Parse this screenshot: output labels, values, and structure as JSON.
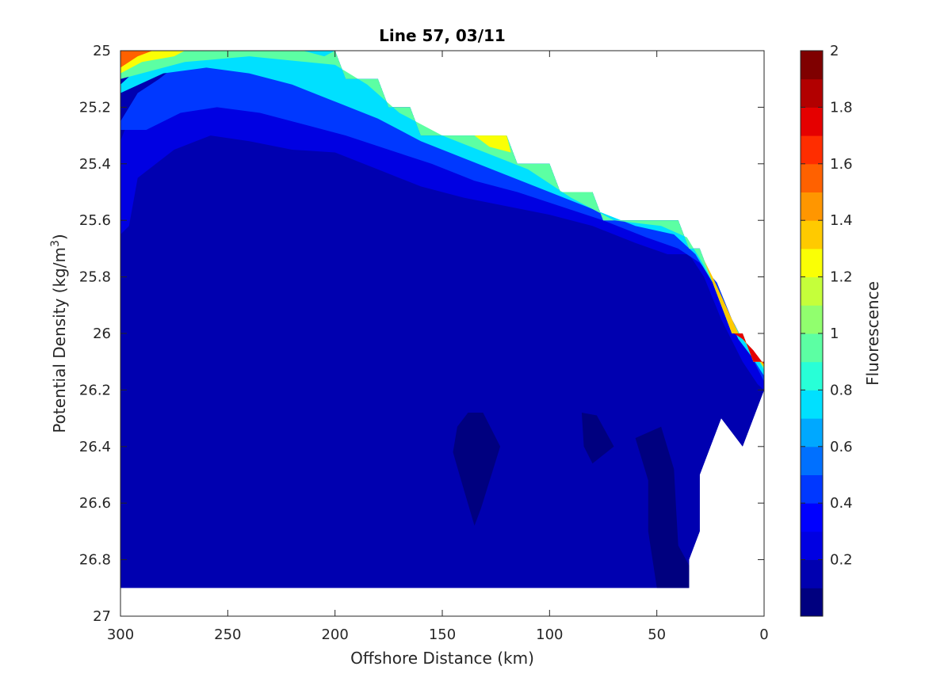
{
  "chart_data": {
    "type": "heatmap",
    "subtype": "filled-contour",
    "title": "Line 57, 03/11",
    "xlabel": "Offshore Distance (km)",
    "ylabel_main": "Potential Density (kg/m",
    "ylabel_sup": "3",
    "ylabel_close": ")",
    "colorbar_label": "Fluorescence",
    "colormap": "jet",
    "xlim": [
      300,
      0
    ],
    "x_reversed": true,
    "ylim": [
      25,
      27
    ],
    "y_reversed": true,
    "x_ticks": [
      300,
      250,
      200,
      150,
      100,
      50,
      0
    ],
    "x_tick_labels": [
      "300",
      "250",
      "200",
      "150",
      "100",
      "50",
      "0"
    ],
    "y_ticks": [
      25,
      25.2,
      25.4,
      25.6,
      25.8,
      26,
      26.2,
      26.4,
      26.6,
      26.8,
      27
    ],
    "y_tick_labels": [
      "25",
      "25.2",
      "25.4",
      "25.6",
      "25.8",
      "26",
      "26.2",
      "26.4",
      "26.6",
      "26.8",
      "27"
    ],
    "clim": [
      0,
      2
    ],
    "colorbar_ticks": [
      0.2,
      0.4,
      0.6,
      0.8,
      1,
      1.2,
      1.4,
      1.6,
      1.8,
      2
    ],
    "colorbar_tick_labels": [
      "0.2",
      "0.4",
      "0.6",
      "0.8",
      "1",
      "1.2",
      "1.4",
      "1.6",
      "1.8",
      "2"
    ],
    "levels": [
      0,
      0.1,
      0.2,
      0.3,
      0.4,
      0.5,
      0.6,
      0.7,
      0.8,
      0.9,
      1.0,
      1.1,
      1.2,
      1.3,
      1.4,
      1.5,
      1.6,
      1.7,
      1.8,
      1.9,
      2.0
    ],
    "level_colors": [
      "#00007F",
      "#0000B0",
      "#0000E2",
      "#0000FF",
      "#0038FF",
      "#0070FF",
      "#00A8FF",
      "#00E0FF",
      "#28FFD7",
      "#5CFFA3",
      "#91FF6E",
      "#C5FF3A",
      "#FAFF05",
      "#FFCA00",
      "#FF9600",
      "#FF6100",
      "#FF2D00",
      "#E50000",
      "#B20000",
      "#7F0000"
    ],
    "surface_top": [
      [
        300,
        25.0
      ],
      [
        270,
        25.0
      ],
      [
        200,
        25.0
      ],
      [
        195,
        25.1
      ],
      [
        180,
        25.1
      ],
      [
        175,
        25.2
      ],
      [
        165,
        25.2
      ],
      [
        160,
        25.3
      ],
      [
        120,
        25.3
      ],
      [
        115,
        25.4
      ],
      [
        100,
        25.4
      ],
      [
        95,
        25.5
      ],
      [
        80,
        25.5
      ],
      [
        75,
        25.6
      ],
      [
        40,
        25.6
      ],
      [
        35,
        25.7
      ],
      [
        30,
        25.7
      ],
      [
        15,
        26.0
      ],
      [
        10,
        26.0
      ],
      [
        5,
        26.1
      ],
      [
        0,
        26.1
      ],
      [
        0,
        26.2
      ],
      [
        10,
        26.4
      ],
      [
        20,
        26.3
      ],
      [
        30,
        26.5
      ],
      [
        30,
        26.7
      ],
      [
        35,
        26.8
      ],
      [
        35,
        26.9
      ],
      [
        300,
        26.9
      ]
    ],
    "contour_fills": [
      {
        "level": 0.15,
        "polygon": [
          [
            300,
            25.65
          ],
          [
            296,
            25.62
          ],
          [
            292,
            25.45
          ],
          [
            275,
            25.35
          ],
          [
            258,
            25.3
          ],
          [
            240,
            25.32
          ],
          [
            220,
            25.35
          ],
          [
            200,
            25.36
          ],
          [
            180,
            25.42
          ],
          [
            160,
            25.48
          ],
          [
            140,
            25.52
          ],
          [
            120,
            25.55
          ],
          [
            100,
            25.58
          ],
          [
            80,
            25.62
          ],
          [
            60,
            25.68
          ],
          [
            45,
            25.72
          ],
          [
            35,
            25.72
          ],
          [
            28,
            25.8
          ],
          [
            20,
            25.95
          ],
          [
            10,
            26.1
          ],
          [
            3,
            26.18
          ],
          [
            0,
            26.2
          ],
          [
            10,
            26.4
          ],
          [
            20,
            26.3
          ],
          [
            30,
            26.5
          ],
          [
            30,
            26.7
          ],
          [
            35,
            26.8
          ],
          [
            35,
            26.9
          ],
          [
            300,
            26.9
          ],
          [
            300,
            26.82
          ]
        ]
      },
      {
        "level": 0.25,
        "polygon": [
          [
            300,
            25.32
          ],
          [
            294,
            25.2
          ],
          [
            285,
            25.15
          ],
          [
            275,
            25.08
          ],
          [
            265,
            25.02
          ],
          [
            255,
            25.0
          ],
          [
            200,
            25.0
          ],
          [
            195,
            25.1
          ],
          [
            180,
            25.1
          ],
          [
            175,
            25.2
          ],
          [
            165,
            25.2
          ],
          [
            160,
            25.3
          ],
          [
            120,
            25.3
          ],
          [
            115,
            25.4
          ],
          [
            100,
            25.4
          ],
          [
            95,
            25.5
          ],
          [
            80,
            25.5
          ],
          [
            75,
            25.6
          ],
          [
            40,
            25.6
          ],
          [
            35,
            25.7
          ],
          [
            30,
            25.7
          ],
          [
            15,
            26.0
          ],
          [
            10,
            26.0
          ],
          [
            5,
            26.1
          ],
          [
            0,
            26.1
          ],
          [
            0,
            26.2
          ],
          [
            3,
            26.18
          ],
          [
            10,
            26.1
          ],
          [
            20,
            25.95
          ],
          [
            28,
            25.8
          ],
          [
            35,
            25.72
          ],
          [
            45,
            25.72
          ],
          [
            60,
            25.68
          ],
          [
            80,
            25.62
          ],
          [
            100,
            25.58
          ],
          [
            120,
            25.55
          ],
          [
            140,
            25.52
          ],
          [
            160,
            25.48
          ],
          [
            180,
            25.42
          ],
          [
            200,
            25.36
          ],
          [
            220,
            25.35
          ],
          [
            240,
            25.32
          ],
          [
            258,
            25.3
          ],
          [
            275,
            25.35
          ],
          [
            292,
            25.45
          ],
          [
            296,
            25.62
          ],
          [
            300,
            25.65
          ]
        ]
      },
      {
        "level": 0.45,
        "polygon": [
          [
            300,
            25.25
          ],
          [
            292,
            25.15
          ],
          [
            282,
            25.1
          ],
          [
            272,
            25.04
          ],
          [
            262,
            25.0
          ],
          [
            200,
            25.0
          ],
          [
            195,
            25.1
          ],
          [
            180,
            25.1
          ],
          [
            175,
            25.2
          ],
          [
            165,
            25.2
          ],
          [
            160,
            25.3
          ],
          [
            120,
            25.3
          ],
          [
            115,
            25.4
          ],
          [
            100,
            25.4
          ],
          [
            95,
            25.5
          ],
          [
            80,
            25.5
          ],
          [
            75,
            25.6
          ],
          [
            40,
            25.6
          ],
          [
            35,
            25.7
          ],
          [
            30,
            25.7
          ],
          [
            15,
            26.0
          ],
          [
            10,
            26.0
          ],
          [
            5,
            26.1
          ],
          [
            0,
            26.1
          ],
          [
            0,
            26.17
          ],
          [
            8,
            26.05
          ],
          [
            15,
            25.95
          ],
          [
            22,
            25.82
          ],
          [
            30,
            25.75
          ],
          [
            40,
            25.7
          ],
          [
            55,
            25.66
          ],
          [
            75,
            25.6
          ],
          [
            95,
            25.55
          ],
          [
            115,
            25.5
          ],
          [
            135,
            25.46
          ],
          [
            155,
            25.4
          ],
          [
            175,
            25.35
          ],
          [
            195,
            25.3
          ],
          [
            215,
            25.26
          ],
          [
            235,
            25.22
          ],
          [
            255,
            25.2
          ],
          [
            272,
            25.22
          ],
          [
            288,
            25.28
          ],
          [
            300,
            25.28
          ]
        ]
      },
      {
        "level": 0.75,
        "polygon": [
          [
            300,
            25.12
          ],
          [
            290,
            25.05
          ],
          [
            280,
            25.02
          ],
          [
            270,
            25.0
          ],
          [
            200,
            25.0
          ],
          [
            195,
            25.1
          ],
          [
            180,
            25.1
          ],
          [
            175,
            25.2
          ],
          [
            165,
            25.2
          ],
          [
            160,
            25.3
          ],
          [
            120,
            25.3
          ],
          [
            115,
            25.4
          ],
          [
            100,
            25.4
          ],
          [
            95,
            25.5
          ],
          [
            80,
            25.5
          ],
          [
            75,
            25.6
          ],
          [
            40,
            25.6
          ],
          [
            35,
            25.7
          ],
          [
            30,
            25.7
          ],
          [
            15,
            26.0
          ],
          [
            10,
            26.0
          ],
          [
            5,
            26.1
          ],
          [
            0,
            26.1
          ],
          [
            0,
            26.15
          ],
          [
            6,
            26.08
          ],
          [
            12,
            26.02
          ],
          [
            18,
            25.92
          ],
          [
            24,
            25.82
          ],
          [
            32,
            25.72
          ],
          [
            42,
            25.65
          ],
          [
            60,
            25.62
          ],
          [
            80,
            25.56
          ],
          [
            100,
            25.5
          ],
          [
            120,
            25.44
          ],
          [
            140,
            25.38
          ],
          [
            160,
            25.32
          ],
          [
            180,
            25.24
          ],
          [
            200,
            25.18
          ],
          [
            220,
            25.12
          ],
          [
            240,
            25.08
          ],
          [
            260,
            25.06
          ],
          [
            280,
            25.08
          ],
          [
            300,
            25.15
          ]
        ]
      },
      {
        "level": 0.95,
        "polygon": [
          [
            300,
            25.05
          ],
          [
            290,
            25.02
          ],
          [
            280,
            25.0
          ],
          [
            215,
            25.0
          ],
          [
            205,
            25.02
          ],
          [
            200,
            25.0
          ],
          [
            195,
            25.1
          ],
          [
            180,
            25.1
          ],
          [
            175,
            25.2
          ],
          [
            165,
            25.2
          ],
          [
            160,
            25.3
          ],
          [
            120,
            25.3
          ],
          [
            115,
            25.4
          ],
          [
            100,
            25.4
          ],
          [
            95,
            25.5
          ],
          [
            80,
            25.5
          ],
          [
            75,
            25.6
          ],
          [
            40,
            25.6
          ],
          [
            35,
            25.7
          ],
          [
            30,
            25.7
          ],
          [
            15,
            26.0
          ],
          [
            10,
            26.0
          ],
          [
            5,
            26.1
          ],
          [
            0,
            26.1
          ],
          [
            0,
            26.13
          ],
          [
            5,
            26.06
          ],
          [
            10,
            26.02
          ],
          [
            16,
            25.94
          ],
          [
            22,
            25.85
          ],
          [
            28,
            25.76
          ],
          [
            36,
            25.66
          ],
          [
            48,
            25.62
          ],
          [
            70,
            25.6
          ],
          [
            90,
            25.52
          ],
          [
            110,
            25.42
          ],
          [
            130,
            25.36
          ],
          [
            150,
            25.3
          ],
          [
            170,
            25.22
          ],
          [
            185,
            25.12
          ],
          [
            200,
            25.05
          ],
          [
            240,
            25.02
          ],
          [
            270,
            25.04
          ],
          [
            300,
            25.1
          ]
        ]
      },
      {
        "level": 1.25,
        "polygon": [
          [
            300,
            25.02
          ],
          [
            295,
            25.0
          ],
          [
            270,
            25.0
          ],
          [
            275,
            25.02
          ],
          [
            290,
            25.04
          ],
          [
            300,
            25.08
          ]
        ]
      },
      {
        "level": 1.25,
        "polygon": [
          [
            135,
            25.3
          ],
          [
            120,
            25.3
          ],
          [
            118,
            25.36
          ],
          [
            128,
            25.34
          ]
        ]
      },
      {
        "level": 1.35,
        "polygon": [
          [
            30,
            25.7
          ],
          [
            15,
            26.0
          ],
          [
            10,
            26.0
          ],
          [
            5,
            26.1
          ],
          [
            0,
            26.1
          ],
          [
            0,
            26.12
          ],
          [
            6,
            26.06
          ],
          [
            12,
            26.0
          ],
          [
            18,
            25.9
          ],
          [
            24,
            25.8
          ],
          [
            28,
            25.74
          ]
        ]
      },
      {
        "level": 1.55,
        "polygon": [
          [
            300,
            25.0
          ],
          [
            285,
            25.0
          ],
          [
            292,
            25.02
          ],
          [
            300,
            25.06
          ]
        ]
      },
      {
        "level": 1.75,
        "polygon": [
          [
            14,
            26.0
          ],
          [
            10,
            26.0
          ],
          [
            5,
            26.1
          ],
          [
            0,
            26.1
          ],
          [
            0,
            26.11
          ],
          [
            5,
            26.06
          ],
          [
            10,
            26.02
          ]
        ]
      },
      {
        "level": 0.05,
        "polygon": [
          [
            138,
            26.28
          ],
          [
            131,
            26.28
          ],
          [
            123,
            26.4
          ],
          [
            132,
            26.62
          ],
          [
            135,
            26.68
          ],
          [
            142,
            26.5
          ],
          [
            145,
            26.42
          ],
          [
            143,
            26.33
          ]
        ]
      },
      {
        "level": 0.05,
        "polygon": [
          [
            85,
            26.28
          ],
          [
            78,
            26.29
          ],
          [
            70,
            26.4
          ],
          [
            80,
            26.46
          ],
          [
            84,
            26.4
          ]
        ]
      },
      {
        "level": 0.05,
        "polygon": [
          [
            60,
            26.37
          ],
          [
            48,
            26.33
          ],
          [
            42,
            26.48
          ],
          [
            41,
            26.62
          ],
          [
            40,
            26.75
          ],
          [
            35,
            26.82
          ],
          [
            35,
            26.9
          ],
          [
            50,
            26.9
          ],
          [
            54,
            26.7
          ],
          [
            54,
            26.52
          ]
        ]
      }
    ]
  }
}
